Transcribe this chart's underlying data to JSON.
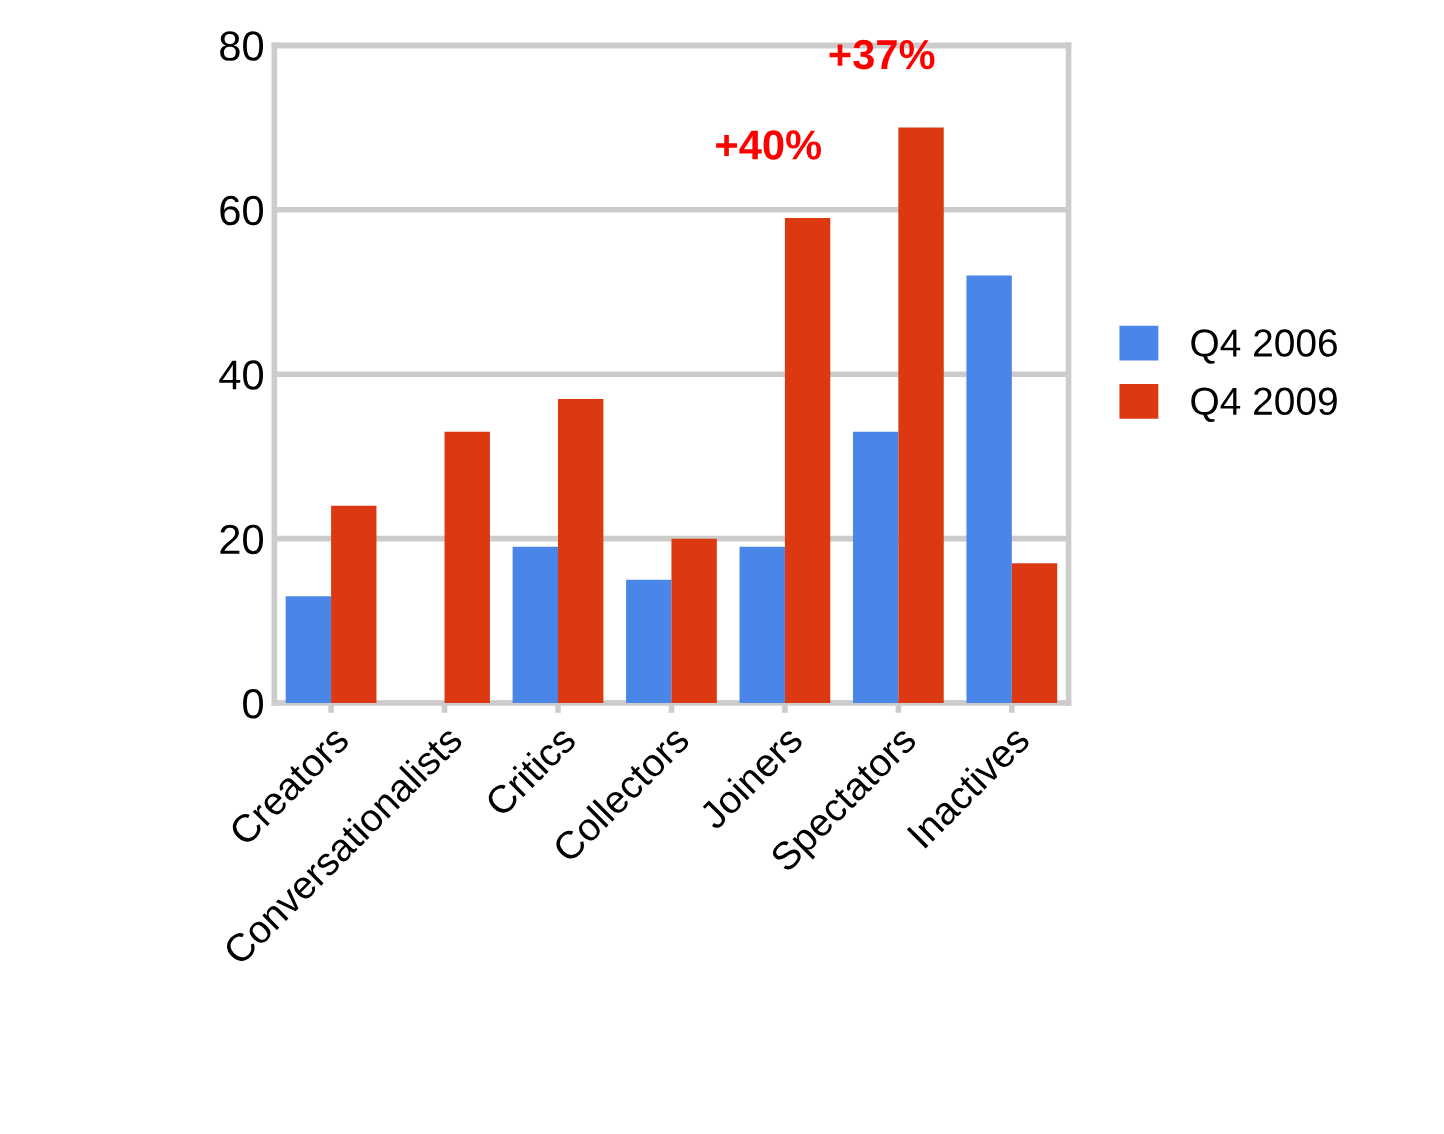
{
  "chart_data": {
    "type": "bar",
    "categories": [
      "Creators",
      "Conversationalists",
      "Critics",
      "Collectors",
      "Joiners",
      "Spectators",
      "Inactives"
    ],
    "series": [
      {
        "name": "Q4 2006",
        "color": "#4a86e8",
        "values": [
          13,
          null,
          19,
          15,
          19,
          33,
          52
        ]
      },
      {
        "name": "Q4 2009",
        "color": "#dc3912",
        "values": [
          24,
          33,
          37,
          20,
          59,
          70,
          17
        ]
      }
    ],
    "ylim": [
      0,
      80
    ],
    "yticks": [
      0,
      20,
      40,
      60,
      80
    ],
    "grid": "y",
    "legend": "right",
    "annotations": [
      {
        "text": "+40%",
        "x": "Joiners",
        "y": 59
      },
      {
        "text": "+37%",
        "x": "Spectators",
        "y": 70
      }
    ]
  }
}
